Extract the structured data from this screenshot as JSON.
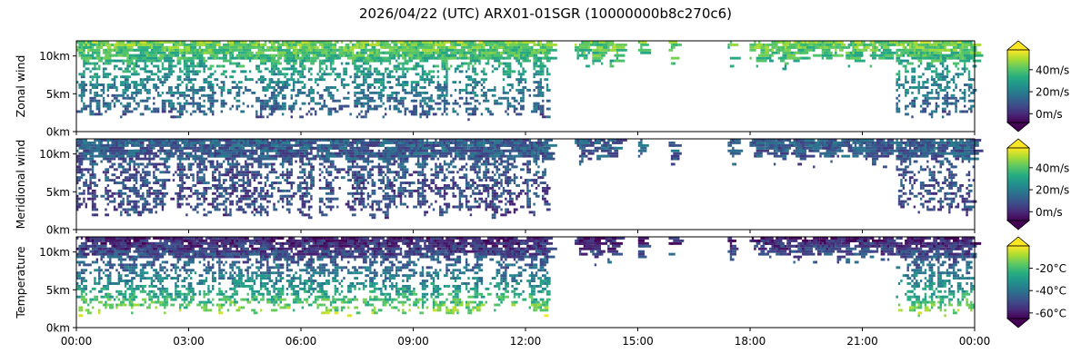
{
  "title": "2026/04/22 (UTC) ARX01-01SGR (10000000b8c270c6)",
  "colormap": [
    "#440154",
    "#472c7a",
    "#3b518b",
    "#2c718e",
    "#21908d",
    "#27ad81",
    "#5cc863",
    "#aadc32",
    "#fde725"
  ],
  "chart_data": [
    {
      "type": "heatmap",
      "panel": "zonal",
      "ylabel": "Zonal wind",
      "x_range_hours": [
        0,
        24
      ],
      "x_ticks": [
        "00:00",
        "03:00",
        "06:00",
        "09:00",
        "12:00",
        "15:00",
        "18:00",
        "21:00",
        "00:00"
      ],
      "y_range_km": [
        0,
        12
      ],
      "y_ticks": [
        "0km",
        "5km",
        "10km"
      ],
      "colorbar": {
        "range": [
          -8,
          58
        ],
        "ticks": [
          "0m/s",
          "20m/s",
          "40m/s"
        ],
        "extend": "both"
      },
      "value_profile": {
        "surface": 5,
        "mid": 20,
        "upper": 45,
        "unit": "m/s"
      },
      "coverage_hours": [
        [
          0.0,
          12.6
        ],
        [
          13.3,
          14.5
        ],
        [
          15.0,
          15.1
        ],
        [
          15.8,
          16.0
        ],
        [
          17.4,
          17.6
        ],
        [
          18.0,
          21.8
        ],
        [
          21.9,
          24.0
        ]
      ],
      "coverage_levels_km": {
        "dense_bottom": 1.5,
        "sparse_bottom": 2.5,
        "top": 12.0
      },
      "grid": false
    },
    {
      "type": "heatmap",
      "panel": "meridional",
      "ylabel": "Meridional wind",
      "x_range_hours": [
        0,
        24
      ],
      "x_ticks": [
        "00:00",
        "03:00",
        "06:00",
        "09:00",
        "12:00",
        "15:00",
        "18:00",
        "21:00",
        "00:00"
      ],
      "y_range_km": [
        0,
        12
      ],
      "y_ticks": [
        "0km",
        "5km",
        "10km"
      ],
      "colorbar": {
        "range": [
          -8,
          58
        ],
        "ticks": [
          "0m/s",
          "20m/s",
          "40m/s"
        ],
        "extend": "both"
      },
      "value_profile": {
        "surface": 5,
        "mid": 8,
        "upper": 12,
        "unit": "m/s"
      },
      "coverage_hours": [
        [
          0.0,
          12.6
        ],
        [
          13.3,
          14.5
        ],
        [
          15.0,
          15.1
        ],
        [
          15.8,
          16.0
        ],
        [
          17.4,
          17.6
        ],
        [
          18.0,
          21.8
        ],
        [
          21.9,
          24.0
        ]
      ],
      "coverage_levels_km": {
        "dense_bottom": 1.5,
        "sparse_bottom": 2.5,
        "top": 12.0
      },
      "grid": false
    },
    {
      "type": "heatmap",
      "panel": "temperature",
      "ylabel": "Temperature",
      "x_range_hours": [
        0,
        24
      ],
      "x_ticks": [
        "00:00",
        "03:00",
        "06:00",
        "09:00",
        "12:00",
        "15:00",
        "18:00",
        "21:00",
        "00:00"
      ],
      "y_range_km": [
        0,
        12
      ],
      "y_ticks": [
        "0km",
        "5km",
        "10km"
      ],
      "colorbar": {
        "range": [
          -65,
          0
        ],
        "ticks": [
          "-20°C",
          "-40°C",
          "-60°C"
        ],
        "tick_values": [
          -20,
          -40,
          -60
        ],
        "extend": "both"
      },
      "value_profile": {
        "surface": 0,
        "mid": -35,
        "upper": -60,
        "unit": "°C"
      },
      "coverage_hours": [
        [
          0.0,
          12.6
        ],
        [
          13.3,
          14.5
        ],
        [
          15.0,
          15.1
        ],
        [
          15.8,
          16.0
        ],
        [
          17.4,
          17.6
        ],
        [
          18.0,
          21.8
        ],
        [
          21.9,
          24.0
        ]
      ],
      "coverage_levels_km": {
        "dense_bottom": 1.5,
        "sparse_bottom": 2.5,
        "top": 12.0
      },
      "grid": false
    }
  ]
}
